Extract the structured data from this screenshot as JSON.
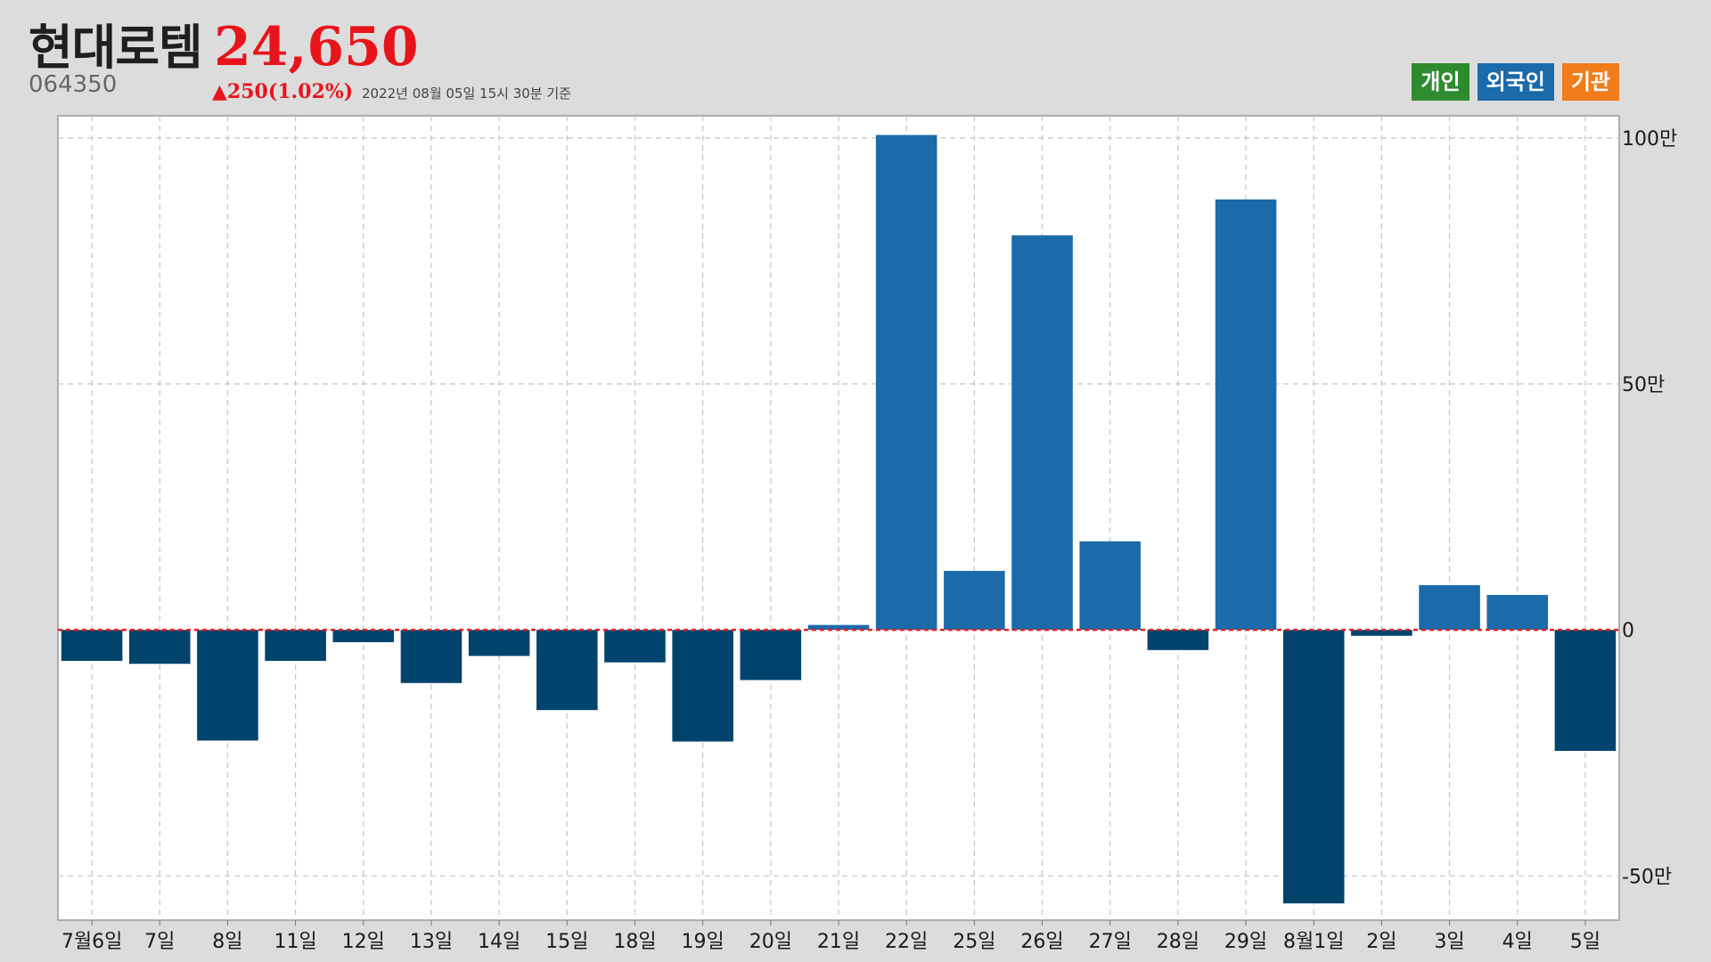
{
  "header": {
    "name": "현대로템",
    "price": "24,650",
    "code": "064350",
    "change": "▲250(1.02%)",
    "asof": "2022년 08월 05일 15시 30분 기준"
  },
  "legend": [
    {
      "label": "개인",
      "color": "#2e8b2e"
    },
    {
      "label": "외국인",
      "color": "#1b6aa9"
    },
    {
      "label": "기관",
      "color": "#f07c1a"
    }
  ],
  "colors": {
    "positive": "#1b6aa9",
    "negative": "#00446e",
    "zero_line": "#e02020",
    "grid": "#c4c4c4",
    "plot_bg": "#ffffff"
  },
  "chart_data": {
    "type": "bar",
    "categories": [
      "7월6일",
      "7일",
      "8일",
      "11일",
      "12일",
      "13일",
      "14일",
      "15일",
      "18일",
      "19일",
      "20일",
      "21일",
      "22일",
      "25일",
      "26일",
      "27일",
      "28일",
      "29일",
      "8월1일",
      "2일",
      "3일",
      "4일",
      "5일"
    ],
    "values": [
      -63000,
      -69000,
      -225000,
      -63000,
      -25000,
      -108000,
      -53000,
      -163000,
      -66000,
      -227000,
      -102000,
      10000,
      1006000,
      120000,
      802000,
      180000,
      -41000,
      875000,
      -556000,
      -12000,
      91000,
      71000,
      -246000
    ],
    "ylim": [
      -590000,
      1045000
    ],
    "yticks": [
      -500000,
      0,
      500000,
      1000000
    ],
    "ytick_labels": [
      "-50만",
      "0",
      "50만",
      "100만"
    ],
    "grid": true,
    "series": [
      {
        "name": "외국인"
      }
    ]
  }
}
